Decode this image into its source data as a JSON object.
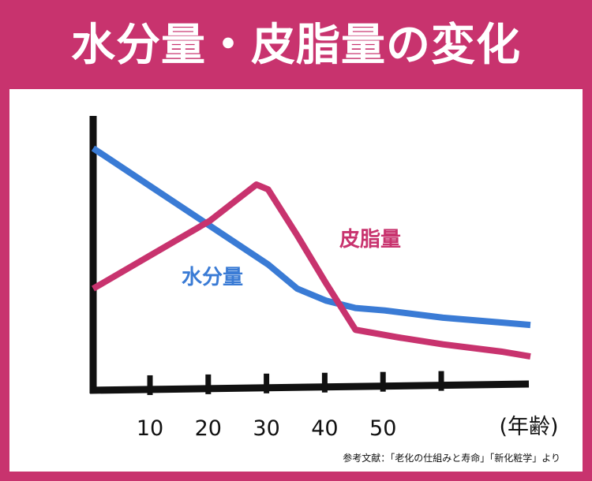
{
  "title": "水分量・皮脂量の変化",
  "source": "参考文献：「老化の仕組みと寿命」「新化粧学」より",
  "colors": {
    "background": "#c8336e",
    "panel": "#ffffff",
    "axis": "#111111",
    "water": "#3a7bd5",
    "sebum": "#c8336e"
  },
  "chart_data": {
    "type": "line",
    "title": "水分量・皮脂量の変化",
    "xlabel": "(年齢)",
    "ylabel": "",
    "x_ticks": [
      10,
      20,
      30,
      40,
      50
    ],
    "xlim": [
      0,
      75
    ],
    "ylim": [
      0,
      100
    ],
    "grid": false,
    "legend": "inline labels",
    "series": [
      {
        "name": "水分量",
        "color": "#3a7bd5",
        "x": [
          0,
          10,
          20,
          30,
          35,
          40,
          45,
          50,
          60,
          70,
          75
        ],
        "y": [
          100,
          84,
          68,
          52,
          42,
          37,
          34,
          33,
          30,
          28,
          27
        ]
      },
      {
        "name": "皮脂量",
        "color": "#c8336e",
        "x": [
          0,
          10,
          20,
          28,
          30,
          35,
          40,
          45,
          52,
          60,
          70,
          75
        ],
        "y": [
          42,
          56,
          70,
          85,
          83,
          64,
          44,
          25,
          22,
          19,
          16,
          14
        ]
      }
    ]
  }
}
